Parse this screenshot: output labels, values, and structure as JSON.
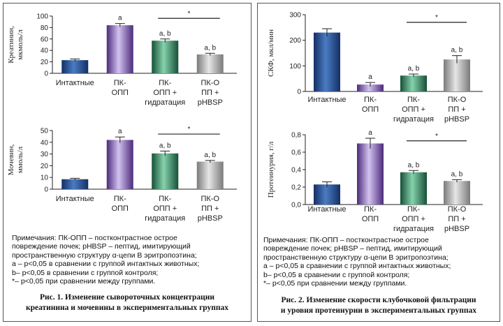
{
  "figure1": {
    "notes": [
      "Примечания: ПК-ОПП – постконтрастное острое",
      "повреждение почек; pHBSP – пептид, имитирующий",
      "пространственную структуру α-цепи В эритропоэтина;",
      "a – p<0,05 в сравнении с группой интактных животных;",
      "b– p<0,05 в сравнении с группой контроля;",
      "*– p<0,05 при сравнении между группами."
    ],
    "caption": [
      "Рис. 1. Изменение сывороточных концентрации",
      "креатинина и мочевины в экспериментальных группах"
    ]
  },
  "figure2": {
    "notes": [
      "Примечания: ПК-ОПП – постконтрастное острое",
      "повреждение почек; pHBSP – пептид, имитирующий",
      "пространственную структуру α-цепи В эритропоэтина;",
      "a – p<0,05 в сравнении с группой интактных животных;",
      "b– p<0,05 в сравнении с группой контроля;",
      "*– p<0,05 при сравнении между группами."
    ],
    "caption": [
      "Рис. 2. Изменение скорости клубочковой фильтрации",
      "и уровня протеинурии в экспериментальных группах"
    ]
  },
  "colors": {
    "intact": [
      "#142f64",
      "#4a7cc2",
      "#142f64"
    ],
    "pkopp": [
      "#4b2a7a",
      "#d3c2f0",
      "#4b2a7a"
    ],
    "hydration": [
      "#155038",
      "#86d2ac",
      "#155038"
    ],
    "phbsp": [
      "#7a7a7a",
      "#e6e6e6",
      "#7a7a7a"
    ]
  },
  "chart_data": [
    {
      "type": "bar",
      "title": "",
      "ylabel": [
        "Креатинин,",
        "мкмоль/л"
      ],
      "categories": [
        [
          "Интактные"
        ],
        [
          "ПК-",
          "ОПП"
        ],
        [
          "ПК-",
          "ОПП +",
          "гидратация"
        ],
        [
          "ПК-О",
          "ПП +",
          "pHBSP"
        ]
      ],
      "values": [
        23,
        84,
        57,
        33
      ],
      "errors": [
        2,
        3,
        3,
        2
      ],
      "annotations": [
        "",
        "a",
        "a, b",
        "a, b"
      ],
      "ylim": [
        0,
        100
      ],
      "yticks": [
        "0",
        "20",
        "40",
        "60",
        "80",
        "100"
      ],
      "significance": {
        "from": 2,
        "to": 3,
        "label": "*",
        "y": 96
      }
    },
    {
      "type": "bar",
      "title": "",
      "ylabel": [
        "Мочевин,",
        "ммоль/л"
      ],
      "categories": [
        [
          "Интактные"
        ],
        [
          "ПК-",
          "ОПП"
        ],
        [
          "ПК-",
          "ОПП +",
          "гидратация"
        ],
        [
          "ПК-О",
          "ПП +",
          "pHBSP"
        ]
      ],
      "values": [
        8.5,
        42,
        30.5,
        23.5
      ],
      "errors": [
        0.8,
        2.5,
        2,
        1
      ],
      "annotations": [
        "",
        "a",
        "a, b",
        "a, b"
      ],
      "ylim": [
        0,
        50
      ],
      "yticks": [
        "0",
        "10",
        "20",
        "30",
        "40",
        "50"
      ],
      "significance": {
        "from": 2,
        "to": 3,
        "label": "*",
        "y": 47
      }
    },
    {
      "type": "bar",
      "title": "",
      "ylabel": [
        "СКФ, мкл/мин"
      ],
      "categories": [
        [
          "Интактные"
        ],
        [
          "ПК-",
          "ОПП"
        ],
        [
          "ПК-",
          "ОПП +",
          "гидратация"
        ],
        [
          "ПК-О",
          "ПП +",
          "pHBSP"
        ]
      ],
      "values": [
        230,
        27,
        62,
        125
      ],
      "errors": [
        15,
        8,
        6,
        15
      ],
      "annotations": [
        "",
        "a",
        "a, b",
        "a, b"
      ],
      "ylim": [
        0,
        300
      ],
      "yticks": [
        "0",
        "100",
        "200",
        "300"
      ],
      "significance": {
        "from": 2,
        "to": 3,
        "label": "*",
        "y": 270
      }
    },
    {
      "type": "bar",
      "title": "",
      "ylabel": [
        "Протеинурия, г/л"
      ],
      "categories": [
        [
          "Интактные"
        ],
        [
          "ПК-",
          "ОПП"
        ],
        [
          "ПК-",
          "ОПП +",
          "гидратация"
        ],
        [
          "ПК-О",
          "ПП +",
          "pHBSP"
        ]
      ],
      "values": [
        0.23,
        0.7,
        0.37,
        0.27
      ],
      "errors": [
        0.03,
        0.06,
        0.02,
        0.015
      ],
      "annotations": [
        "",
        "a",
        "a, b",
        "a, b"
      ],
      "ylim": [
        0,
        0.8
      ],
      "yticks": [
        "0,0",
        "0,2",
        "0,4",
        "0,6",
        "0,8"
      ],
      "significance": {
        "from": 2,
        "to": 3,
        "label": "*",
        "y": 0.73
      }
    }
  ]
}
